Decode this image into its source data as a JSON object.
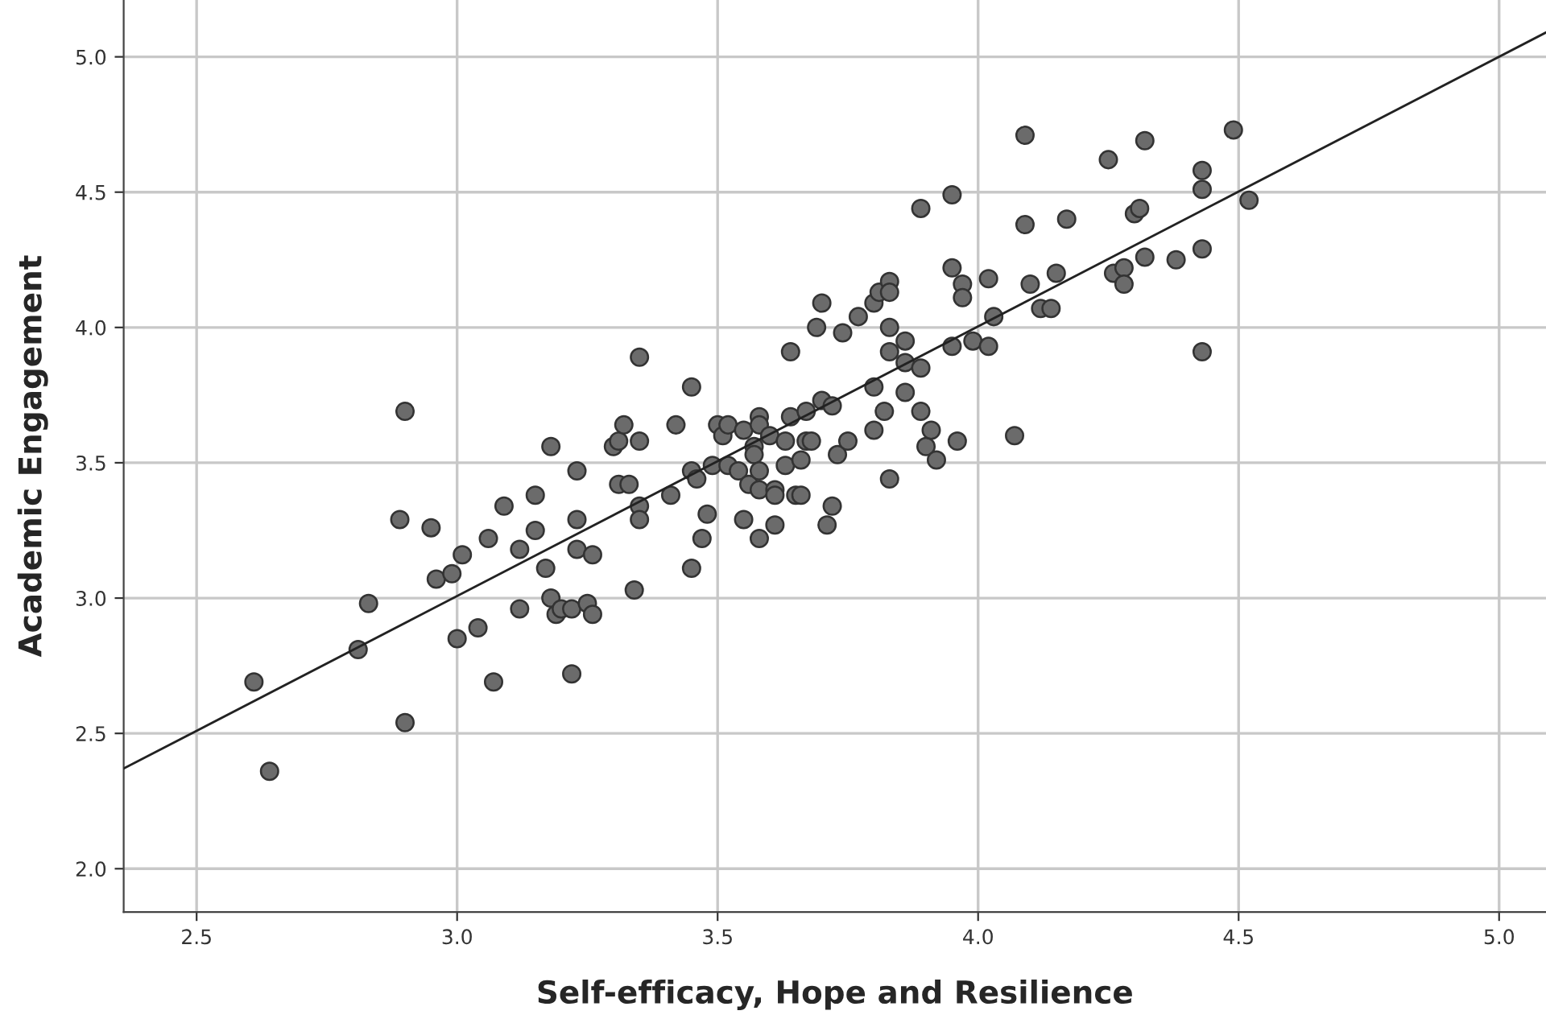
{
  "chart_data": {
    "type": "scatter",
    "xlabel": "Self-efficacy, Hope and Resilience",
    "ylabel": "Academic Engagement",
    "xlim": [
      2.36,
      5.09
    ],
    "ylim": [
      1.84,
      5.21
    ],
    "xticks": [
      {
        "value": 2.5,
        "label": "2.5"
      },
      {
        "value": 3.0,
        "label": "3.0"
      },
      {
        "value": 3.5,
        "label": "3.5"
      },
      {
        "value": 4.0,
        "label": "4.0"
      },
      {
        "value": 4.5,
        "label": "4.5"
      },
      {
        "value": 5.0,
        "label": "5.0"
      }
    ],
    "yticks": [
      {
        "value": 2.0,
        "label": "2.0"
      },
      {
        "value": 2.5,
        "label": "2.5"
      },
      {
        "value": 3.0,
        "label": "3.0"
      },
      {
        "value": 3.5,
        "label": "3.5"
      },
      {
        "value": 4.0,
        "label": "4.0"
      },
      {
        "value": 4.5,
        "label": "4.5"
      },
      {
        "value": 5.0,
        "label": "5.0"
      }
    ],
    "grid": true,
    "series": [
      {
        "marker": "circle",
        "color": "#6b6b6b",
        "x": [
          2.61,
          2.64,
          2.81,
          2.83,
          2.9,
          2.9,
          2.89,
          2.95,
          2.96,
          2.99,
          3.01,
          3.0,
          3.04,
          3.07,
          3.06,
          3.09,
          3.12,
          3.12,
          3.15,
          3.15,
          3.17,
          3.18,
          3.18,
          3.19,
          3.2,
          3.22,
          3.22,
          3.23,
          3.23,
          3.23,
          3.25,
          3.26,
          3.26,
          3.3,
          3.31,
          3.31,
          3.32,
          3.33,
          3.34,
          3.35,
          3.35,
          3.35,
          3.35,
          3.41,
          3.42,
          3.45,
          3.45,
          3.45,
          3.46,
          3.47,
          3.48,
          3.49,
          3.5,
          3.51,
          3.52,
          3.52,
          3.54,
          3.55,
          3.55,
          3.56,
          3.57,
          3.57,
          3.58,
          3.58,
          3.58,
          3.58,
          3.58,
          3.6,
          3.61,
          3.61,
          3.61,
          3.63,
          3.63,
          3.64,
          3.64,
          3.65,
          3.66,
          3.66,
          3.67,
          3.67,
          3.68,
          3.69,
          3.7,
          3.71,
          3.72,
          3.72,
          3.73,
          3.74,
          3.75,
          3.8,
          3.8,
          3.82,
          3.83,
          3.83,
          3.83,
          3.86,
          3.86,
          3.86,
          3.89,
          3.89,
          3.9,
          3.91,
          3.92,
          3.95,
          3.96,
          3.99,
          4.02,
          4.07,
          3.7,
          3.77,
          3.8,
          3.81,
          3.83,
          3.83,
          3.89,
          3.95,
          3.95,
          3.97,
          3.97,
          4.02,
          4.03,
          4.09,
          4.09,
          4.1,
          4.12,
          4.14,
          4.15,
          4.17,
          4.25,
          4.26,
          4.28,
          4.28,
          4.3,
          4.31,
          4.32,
          4.32,
          4.38,
          4.43,
          4.43,
          4.43,
          4.43,
          4.49,
          4.52
        ],
        "values": [
          2.69,
          2.36,
          2.81,
          2.98,
          2.54,
          3.69,
          3.29,
          3.26,
          3.07,
          3.09,
          3.16,
          2.85,
          2.89,
          2.69,
          3.22,
          3.34,
          3.18,
          2.96,
          3.38,
          3.25,
          3.11,
          3.56,
          3.0,
          2.94,
          2.96,
          2.72,
          2.96,
          3.18,
          3.47,
          3.29,
          2.98,
          3.16,
          2.94,
          3.56,
          3.42,
          3.58,
          3.64,
          3.42,
          3.03,
          3.58,
          3.34,
          3.29,
          3.89,
          3.38,
          3.64,
          3.47,
          3.11,
          3.78,
          3.44,
          3.22,
          3.31,
          3.49,
          3.64,
          3.6,
          3.64,
          3.49,
          3.47,
          3.29,
          3.62,
          3.42,
          3.56,
          3.53,
          3.67,
          3.64,
          3.47,
          3.4,
          3.22,
          3.6,
          3.27,
          3.4,
          3.38,
          3.58,
          3.49,
          3.67,
          3.91,
          3.38,
          3.51,
          3.38,
          3.58,
          3.69,
          3.58,
          4.0,
          3.73,
          3.27,
          3.71,
          3.34,
          3.53,
          3.98,
          3.58,
          3.78,
          3.62,
          3.69,
          3.91,
          3.44,
          4.0,
          3.95,
          3.87,
          3.76,
          3.69,
          3.85,
          3.56,
          3.62,
          3.51,
          3.93,
          3.58,
          3.95,
          3.93,
          3.6,
          4.09,
          4.04,
          4.09,
          4.13,
          4.17,
          4.13,
          4.44,
          4.22,
          4.49,
          4.16,
          4.11,
          4.18,
          4.04,
          4.38,
          4.71,
          4.16,
          4.07,
          4.07,
          4.2,
          4.4,
          4.62,
          4.2,
          4.22,
          4.16,
          4.42,
          4.44,
          4.69,
          4.26,
          4.25,
          4.58,
          4.51,
          4.29,
          3.91,
          4.73,
          4.47
        ]
      },
      {
        "type": "line",
        "color": "#222222",
        "x": [
          2.36,
          5.09
        ],
        "values": [
          2.37,
          5.09
        ]
      }
    ]
  }
}
